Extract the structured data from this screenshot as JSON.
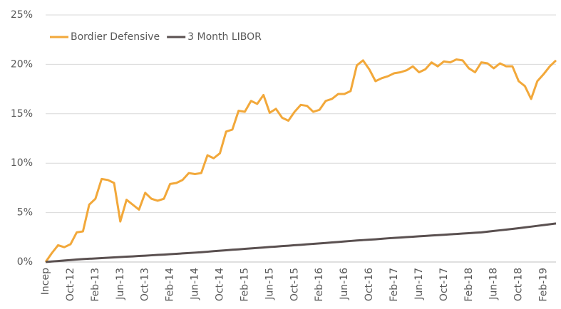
{
  "chart_data": {
    "type": "line",
    "categories": [
      "Incep",
      null,
      null,
      null,
      "Oct-12",
      null,
      null,
      null,
      "Feb-13",
      null,
      null,
      null,
      "Jun-13",
      null,
      null,
      null,
      "Oct-13",
      null,
      null,
      null,
      "Feb-14",
      null,
      null,
      null,
      "Jun-14",
      null,
      null,
      null,
      "Oct-14",
      null,
      null,
      null,
      "Feb-15",
      null,
      null,
      null,
      "Jun-15",
      null,
      null,
      null,
      "Oct-15",
      null,
      null,
      null,
      "Feb-16",
      null,
      null,
      null,
      "Jun-16",
      null,
      null,
      null,
      "Oct-16",
      null,
      null,
      null,
      "Feb-17",
      null,
      null,
      null,
      "Jun-17",
      null,
      null,
      null,
      "Oct-17",
      null,
      null,
      null,
      "Feb-18",
      null,
      null,
      null,
      "Jun-18",
      null,
      null,
      null,
      "Oct-18",
      null,
      null,
      null,
      "Feb-19",
      null,
      null
    ],
    "series": [
      {
        "name": "Bordier Defensive",
        "color": "#f2a83a",
        "values": [
          0,
          0.9,
          1.7,
          1.5,
          1.8,
          3.0,
          3.1,
          5.8,
          6.4,
          8.4,
          8.3,
          8.0,
          4.1,
          6.3,
          5.8,
          5.3,
          7.0,
          6.4,
          6.2,
          6.4,
          7.9,
          8.0,
          8.3,
          9.0,
          8.9,
          9.0,
          10.8,
          10.5,
          11.0,
          13.2,
          13.4,
          15.3,
          15.2,
          16.3,
          16.0,
          16.9,
          15.1,
          15.5,
          14.6,
          14.3,
          15.2,
          15.9,
          15.8,
          15.2,
          15.4,
          16.3,
          16.5,
          17.0,
          17.0,
          17.3,
          19.9,
          20.4,
          19.5,
          18.3,
          18.6,
          18.8,
          19.1,
          19.2,
          19.4,
          19.8,
          19.2,
          19.5,
          20.2,
          19.8,
          20.3,
          20.2,
          20.5,
          20.4,
          19.6,
          19.2,
          20.2,
          20.1,
          19.6,
          20.1,
          19.8,
          19.8,
          18.3,
          17.8,
          16.5,
          18.3,
          19.0,
          19.8,
          20.4
        ]
      },
      {
        "name": "3 Month LIBOR",
        "color": "#5a5050",
        "values": [
          0,
          0.05,
          0.1,
          0.15,
          0.2,
          0.25,
          0.3,
          0.33,
          0.36,
          0.4,
          0.43,
          0.47,
          0.5,
          0.54,
          0.57,
          0.61,
          0.64,
          0.68,
          0.72,
          0.75,
          0.79,
          0.83,
          0.87,
          0.91,
          0.95,
          0.99,
          1.04,
          1.1,
          1.14,
          1.19,
          1.24,
          1.28,
          1.33,
          1.38,
          1.42,
          1.47,
          1.52,
          1.56,
          1.61,
          1.65,
          1.7,
          1.74,
          1.79,
          1.84,
          1.88,
          1.93,
          1.98,
          2.03,
          2.08,
          2.13,
          2.18,
          2.22,
          2.26,
          2.3,
          2.35,
          2.4,
          2.44,
          2.48,
          2.52,
          2.56,
          2.6,
          2.64,
          2.68,
          2.72,
          2.76,
          2.8,
          2.84,
          2.88,
          2.92,
          2.96,
          3.0,
          3.07,
          3.14,
          3.21,
          3.28,
          3.35,
          3.42,
          3.5,
          3.58,
          3.66,
          3.74,
          3.82,
          3.9
        ]
      }
    ],
    "ylim": [
      0,
      25
    ],
    "yticks": [
      {
        "value": 0,
        "label": "0%"
      },
      {
        "value": 5,
        "label": "5%"
      },
      {
        "value": 10,
        "label": "10%"
      },
      {
        "value": 15,
        "label": "15%"
      },
      {
        "value": 20,
        "label": "20%"
      },
      {
        "value": 25,
        "label": "25%"
      }
    ],
    "grid": true,
    "legend": "top-left"
  }
}
